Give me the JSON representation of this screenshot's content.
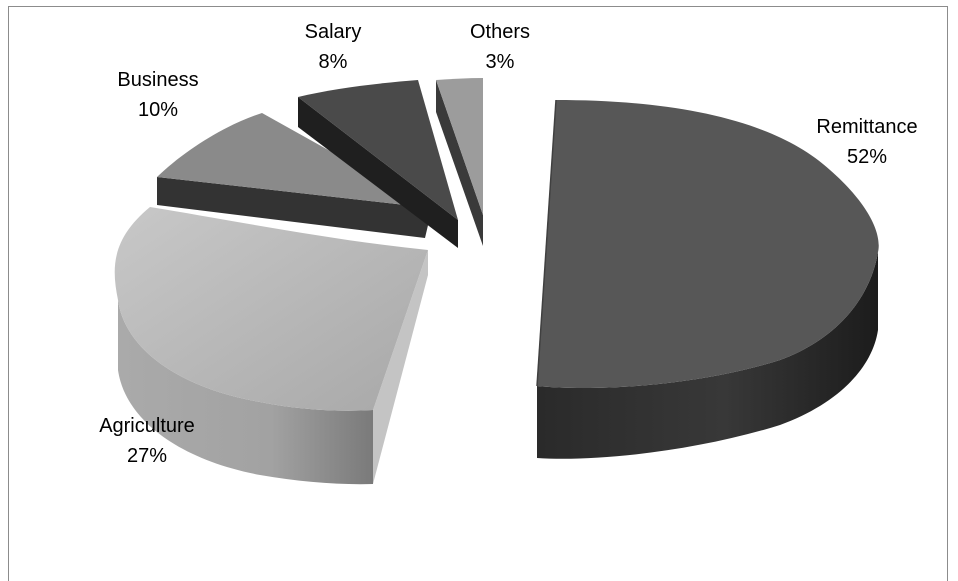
{
  "chart_data": {
    "type": "pie",
    "style": "3d-exploded",
    "title": "",
    "slices": [
      {
        "name": "Remittance",
        "value": 52,
        "label": "52%",
        "top": "#565656",
        "side": "#353535"
      },
      {
        "name": "Agriculture",
        "value": 27,
        "label": "27%",
        "top": "#b4b4b4",
        "side": "#8e8e8e"
      },
      {
        "name": "Business",
        "value": 10,
        "label": "10%",
        "top": "#8a8a8a",
        "side": "#3a3a3a"
      },
      {
        "name": "Salary",
        "value": 8,
        "label": "8%",
        "top": "#4a4a4a",
        "side": "#252525"
      },
      {
        "name": "Others",
        "value": 3,
        "label": "3%",
        "top": "#9c9c9c",
        "side": "#3c3c3c"
      }
    ]
  }
}
